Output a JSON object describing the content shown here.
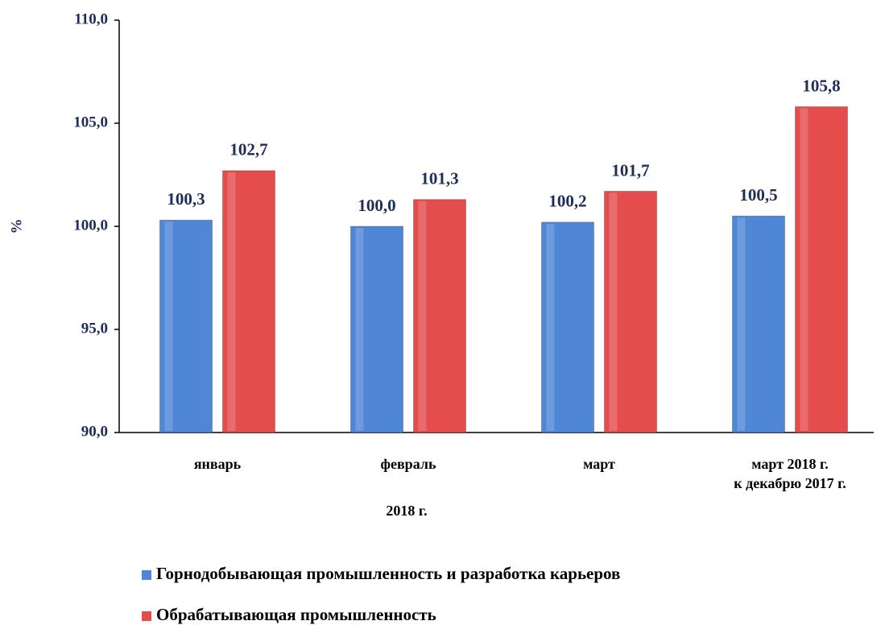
{
  "chart_data": {
    "type": "bar",
    "categories": [
      "январь",
      "февраль",
      "март",
      [
        "март 2018 г.",
        "к декабрю 2017 г."
      ]
    ],
    "series": [
      {
        "name": "Горнодобывающая промышленность и разработка карьеров",
        "color": "#4f86d6",
        "values": [
          100.3,
          100.0,
          100.2,
          100.5
        ],
        "value_labels": [
          "100,3",
          "100,0",
          "100,2",
          "100,5"
        ]
      },
      {
        "name": "Обрабатывающая промышленность",
        "color": "#e54c4c",
        "values": [
          102.7,
          101.3,
          101.7,
          105.8
        ],
        "value_labels": [
          "102,7",
          "101,3",
          "101,7",
          "105,8"
        ]
      }
    ],
    "y_label": "%",
    "x_label": "2018 г.",
    "ylim": [
      90,
      110
    ],
    "yticks": [
      {
        "value": 90,
        "label": "90,0"
      },
      {
        "value": 95,
        "label": "95,0"
      },
      {
        "value": 100,
        "label": "100,0"
      },
      {
        "value": 105,
        "label": "105,0"
      },
      {
        "value": 110,
        "label": "110,0"
      }
    ],
    "grid": false,
    "legend": "bottom"
  }
}
